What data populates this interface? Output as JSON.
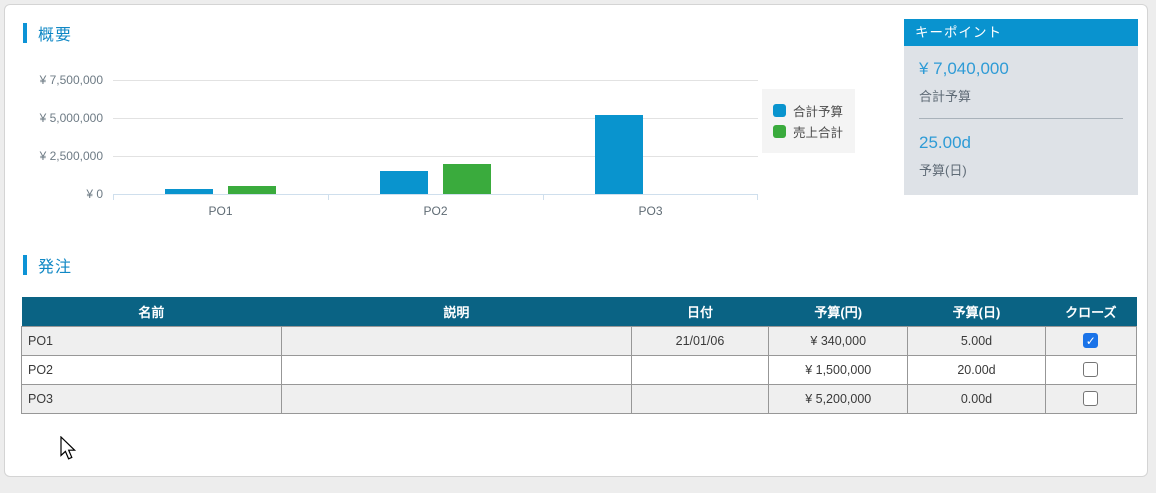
{
  "page": {
    "background": "#ededed",
    "card_background": "#ffffff"
  },
  "overview": {
    "title": "概要",
    "accent_color": "#0d93d6"
  },
  "chart_data": {
    "type": "bar",
    "categories": [
      "PO1",
      "PO2",
      "PO3"
    ],
    "series": [
      {
        "name": "合計予算",
        "color": "#0994ce",
        "values": [
          340000,
          1500000,
          5200000
        ]
      },
      {
        "name": "売上合計",
        "color": "#3aab3d",
        "values": [
          500000,
          1950000,
          0
        ]
      }
    ],
    "title": "",
    "xlabel": "",
    "ylabel": "",
    "ylim": [
      0,
      7500000
    ],
    "ytick_interval": 2500000,
    "ytick_labels": [
      "¥ 7,500,000",
      "¥ 5,000,000",
      "¥ 2,500,000",
      "¥ 0"
    ],
    "grid": true,
    "legend_position": "right"
  },
  "keypoints": {
    "title": "キーポイント",
    "items": [
      {
        "value": "¥ 7,040,000",
        "label": "合計予算"
      },
      {
        "value": "25.00d",
        "label": "予算(日)"
      }
    ]
  },
  "orders": {
    "title": "発注",
    "columns": [
      "名前",
      "説明",
      "日付",
      "予算(円)",
      "予算(日)",
      "クローズ"
    ],
    "rows": [
      {
        "name": "PO1",
        "description": "",
        "date": "21/01/06",
        "budget_yen": "¥ 340,000",
        "budget_days": "5.00d",
        "closed": true
      },
      {
        "name": "PO2",
        "description": "",
        "date": "",
        "budget_yen": "¥ 1,500,000",
        "budget_days": "20.00d",
        "closed": false
      },
      {
        "name": "PO3",
        "description": "",
        "date": "",
        "budget_yen": "¥ 5,200,000",
        "budget_days": "0.00d",
        "closed": false
      }
    ]
  }
}
